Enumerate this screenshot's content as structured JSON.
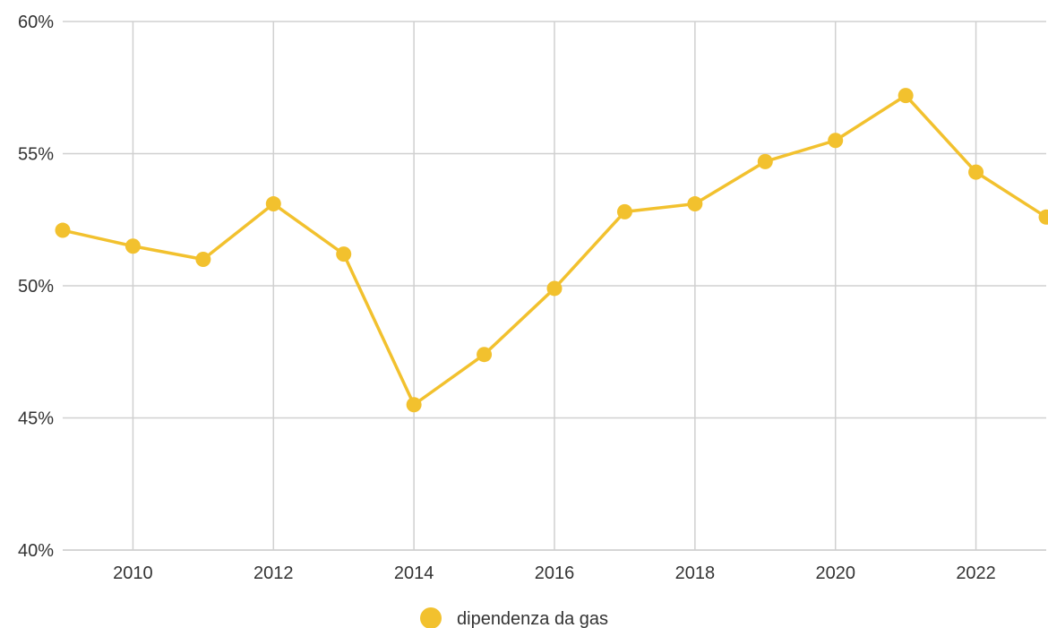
{
  "chart_data": {
    "type": "line",
    "title": "",
    "xlabel": "",
    "ylabel": "",
    "x": [
      2009,
      2010,
      2011,
      2012,
      2013,
      2014,
      2015,
      2016,
      2017,
      2018,
      2019,
      2020,
      2021,
      2022,
      2023
    ],
    "series": [
      {
        "name": "dipendenza da gas",
        "color": "#F2C12E",
        "values": [
          52.1,
          51.5,
          51.0,
          53.1,
          51.2,
          45.5,
          47.4,
          49.9,
          52.8,
          53.1,
          54.7,
          55.5,
          57.2,
          54.3,
          52.6
        ]
      }
    ],
    "xlim": [
      2009,
      2023
    ],
    "ylim": [
      40,
      60
    ],
    "x_ticks": [
      2010,
      2012,
      2014,
      2016,
      2018,
      2020,
      2022
    ],
    "x_tick_labels": [
      "2010",
      "2012",
      "2014",
      "2016",
      "2018",
      "2020",
      "2022"
    ],
    "y_ticks": [
      40,
      45,
      50,
      55,
      60
    ],
    "y_tick_labels": [
      "40%",
      "45%",
      "50%",
      "55%",
      "60%"
    ],
    "grid": true,
    "legend": {
      "position": "bottom",
      "label": "dipendenza da gas"
    }
  }
}
